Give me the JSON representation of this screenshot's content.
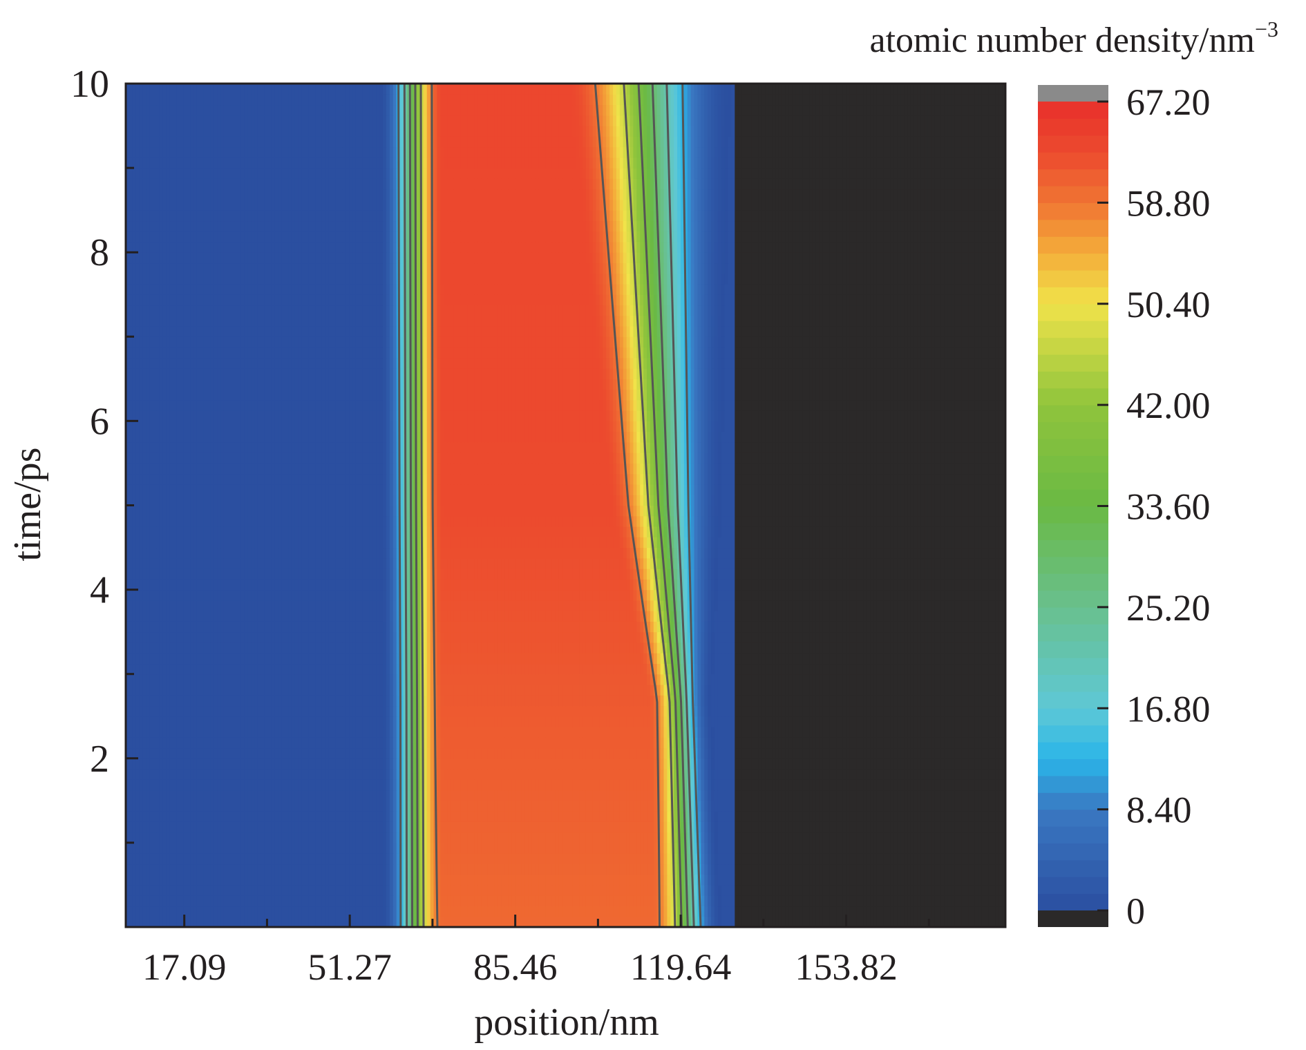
{
  "chart_data": {
    "type": "heatmap",
    "title": "",
    "xlabel": "position/nm",
    "ylabel": "time/ps",
    "colorbar_label": "atomic number density/nm",
    "colorbar_label_superscript": "−3",
    "xlim": [
      5.0,
      186.7
    ],
    "ylim": [
      0.0,
      10.0
    ],
    "x_ticks": [
      17.09,
      51.27,
      85.46,
      119.64,
      153.82
    ],
    "x_tick_labels": [
      "17.09",
      "51.27",
      "85.46",
      "119.64",
      "153.82"
    ],
    "y_ticks": [
      2,
      4,
      6,
      8,
      10
    ],
    "y_tick_labels": [
      "2",
      "4",
      "6",
      "8",
      "10"
    ],
    "colorbar_range": [
      0,
      67.2
    ],
    "colorbar_ticks": [
      0,
      8.4,
      16.8,
      25.2,
      33.6,
      42.0,
      50.4,
      58.8,
      67.2
    ],
    "colorbar_tick_labels": [
      "0",
      "8.40",
      "16.80",
      "25.20",
      "33.60",
      "42.00",
      "50.40",
      "58.80",
      "67.20"
    ],
    "colorbar_stops": [
      {
        "value": 0,
        "color": "#2b4fa0"
      },
      {
        "value": 8.4,
        "color": "#3a78c2"
      },
      {
        "value": 12.6,
        "color": "#2ab5e8"
      },
      {
        "value": 16.8,
        "color": "#5ec8d6"
      },
      {
        "value": 25.2,
        "color": "#69c08e"
      },
      {
        "value": 33.6,
        "color": "#6ab944"
      },
      {
        "value": 42.0,
        "color": "#8fc43c"
      },
      {
        "value": 50.4,
        "color": "#f0e34a"
      },
      {
        "value": 54.6,
        "color": "#f4ad3a"
      },
      {
        "value": 58.8,
        "color": "#f07533"
      },
      {
        "value": 63.0,
        "color": "#ec4a2e"
      },
      {
        "value": 67.2,
        "color": "#e8302b"
      }
    ],
    "colors": {
      "under_range": "#2b2929",
      "over_range": "#8a8a8a",
      "contour": "#555555"
    },
    "times": [
      0,
      2.7,
      5,
      10
    ],
    "profiles": [
      {
        "time": 0,
        "rise_start": 58.0,
        "rise_end": 70.5,
        "plateau": 60.0,
        "fall_start": 114.0,
        "fall_end": 128.0,
        "end": 130.5
      },
      {
        "time": 2.7,
        "rise_start": 58.0,
        "rise_end": 70.5,
        "plateau": 61.5,
        "fall_start": 113.0,
        "fall_end": 126.0,
        "end": 130.5
      },
      {
        "time": 5,
        "rise_start": 57.8,
        "rise_end": 70.5,
        "plateau": 63.0,
        "fall_start": 105.0,
        "fall_end": 128.0,
        "end": 130.5
      },
      {
        "time": 10,
        "rise_start": 57.5,
        "rise_end": 70.5,
        "plateau": 63.5,
        "fall_start": 96.0,
        "fall_end": 130.0,
        "end": 130.5
      }
    ],
    "contour_levels": [
      12.6,
      21.0,
      29.4,
      37.8,
      46.2,
      58.8
    ],
    "grid": false
  }
}
